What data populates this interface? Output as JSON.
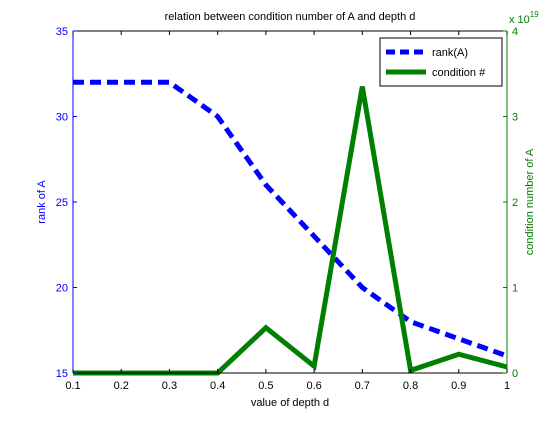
{
  "chart_data": {
    "type": "line",
    "title": "relation between condition number of A and depth d",
    "xlabel": "value of depth d",
    "ylabel_left": "rank of A",
    "ylabel_right": "condition number of A",
    "right_axis_multiplier": "x 10",
    "right_axis_exponent": "19",
    "xlim": [
      0.1,
      1
    ],
    "ylim_left": [
      15,
      35
    ],
    "ylim_right": [
      0,
      4
    ],
    "x_ticks": [
      "0.1",
      "0.2",
      "0.3",
      "0.4",
      "0.5",
      "0.6",
      "0.7",
      "0.8",
      "0.9",
      "1"
    ],
    "y_left_ticks": [
      "15",
      "20",
      "25",
      "30",
      "35"
    ],
    "y_right_ticks": [
      "0",
      "1",
      "2",
      "3",
      "4"
    ],
    "grid": false,
    "legend_position": "top-right",
    "colors": {
      "left_axis": "#0000ff",
      "right_axis": "#008000",
      "frame": "#000000"
    },
    "series": [
      {
        "name": "rank(A)",
        "axis": "left",
        "color": "#0000ff",
        "style": "dashed",
        "x": [
          0.1,
          0.2,
          0.3,
          0.4,
          0.5,
          0.6,
          0.7,
          0.8,
          0.9,
          1.0
        ],
        "values": [
          32,
          32,
          32,
          30,
          26,
          23,
          20,
          18,
          17,
          16
        ]
      },
      {
        "name": "condition #",
        "axis": "right",
        "color": "#008000",
        "style": "solid",
        "x": [
          0.1,
          0.2,
          0.3,
          0.4,
          0.5,
          0.6,
          0.7,
          0.8,
          0.9,
          1.0
        ],
        "values": [
          0.0,
          0.0,
          0.0,
          0.0,
          0.53,
          0.08,
          3.35,
          0.03,
          0.22,
          0.07
        ]
      }
    ]
  }
}
